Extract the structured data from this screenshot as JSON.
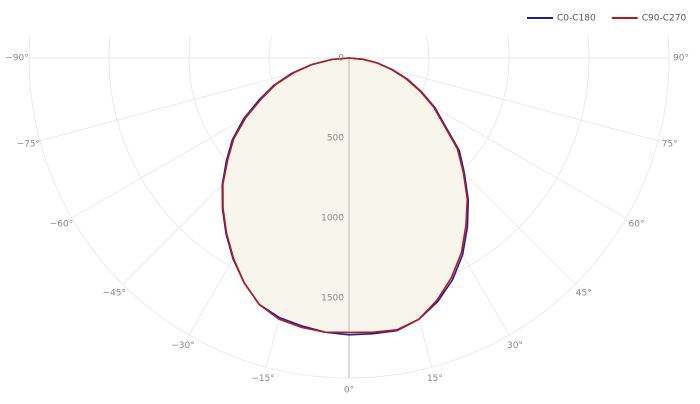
{
  "chart_data": {
    "type": "polar",
    "x": [
      -90,
      -85,
      -80,
      -75,
      -70,
      -65,
      -60,
      -55,
      -50,
      -45,
      -40,
      -35,
      -30,
      -25,
      -20,
      -15,
      -10,
      -5,
      0,
      5,
      10,
      15,
      20,
      25,
      30,
      35,
      40,
      45,
      50,
      55,
      60,
      65,
      70,
      75,
      80,
      85,
      90
    ],
    "series": [
      {
        "name": "C0-C180",
        "color": "#1f1f9a",
        "values": [
          0,
          110,
          240,
          370,
          500,
          620,
          760,
          890,
          1000,
          1120,
          1230,
          1340,
          1450,
          1550,
          1640,
          1680,
          1700,
          1720,
          1730,
          1730,
          1730,
          1690,
          1620,
          1530,
          1420,
          1290,
          1160,
          1020,
          900,
          730,
          620,
          500,
          390,
          280,
          180,
          90,
          0
        ]
      },
      {
        "name": "C90-C270",
        "color": "#b01c1c",
        "values": [
          0,
          110,
          235,
          360,
          490,
          605,
          745,
          880,
          990,
          1115,
          1225,
          1335,
          1445,
          1550,
          1640,
          1690,
          1710,
          1720,
          1715,
          1720,
          1725,
          1690,
          1610,
          1515,
          1405,
          1275,
          1150,
          1010,
          885,
          720,
          610,
          490,
          380,
          275,
          180,
          90,
          0
        ]
      }
    ],
    "rlim": [
      0,
      2000
    ],
    "rticks": [
      0,
      500,
      1000,
      1500
    ],
    "thetaticks": [
      {
        "value": -90,
        "label": "−90°"
      },
      {
        "value": -75,
        "label": "−75°"
      },
      {
        "value": -60,
        "label": "−60°"
      },
      {
        "value": -45,
        "label": "−45°"
      },
      {
        "value": -30,
        "label": "−30°"
      },
      {
        "value": -15,
        "label": "−15°"
      },
      {
        "value": 0,
        "label": "0°"
      },
      {
        "value": 15,
        "label": "15°"
      },
      {
        "value": 30,
        "label": "30°"
      },
      {
        "value": 45,
        "label": "45°"
      },
      {
        "value": 60,
        "label": "60°"
      },
      {
        "value": 75,
        "label": "75°"
      },
      {
        "value": 90,
        "label": "90°"
      }
    ],
    "fill_color": "#f8f5ec",
    "grid": true
  }
}
